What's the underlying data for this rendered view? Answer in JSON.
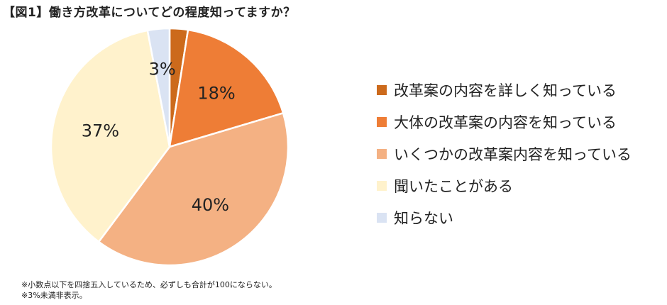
{
  "title": "【図1】働き方改革についてどの程度知ってますか？",
  "notes": [
    "※小数点以下を四捨五入しているため、必ずしも合計が100にならない。",
    "※3%未満非表示。"
  ],
  "chart_data": {
    "type": "pie",
    "title": "【図1】働き方改革についてどの程度知ってますか？",
    "legend_position": "right",
    "start": "top, clockwise",
    "slices": [
      {
        "name": "改革案の内容を詳しく知っている",
        "value": 2.5,
        "label": "",
        "color": "#cc6a1c"
      },
      {
        "name": "大体の改革案の内容を知っている",
        "value": 18,
        "label": "18%",
        "color": "#ee7d36"
      },
      {
        "name": "いくつかの改革案内容を知っている",
        "value": 40,
        "label": "40%",
        "color": "#f4b183"
      },
      {
        "name": "聞いたことがある",
        "value": 37,
        "label": "37%",
        "color": "#fff2cc"
      },
      {
        "name": "知らない",
        "value": 3,
        "label": "3%",
        "color": "#dae3f3"
      }
    ]
  }
}
